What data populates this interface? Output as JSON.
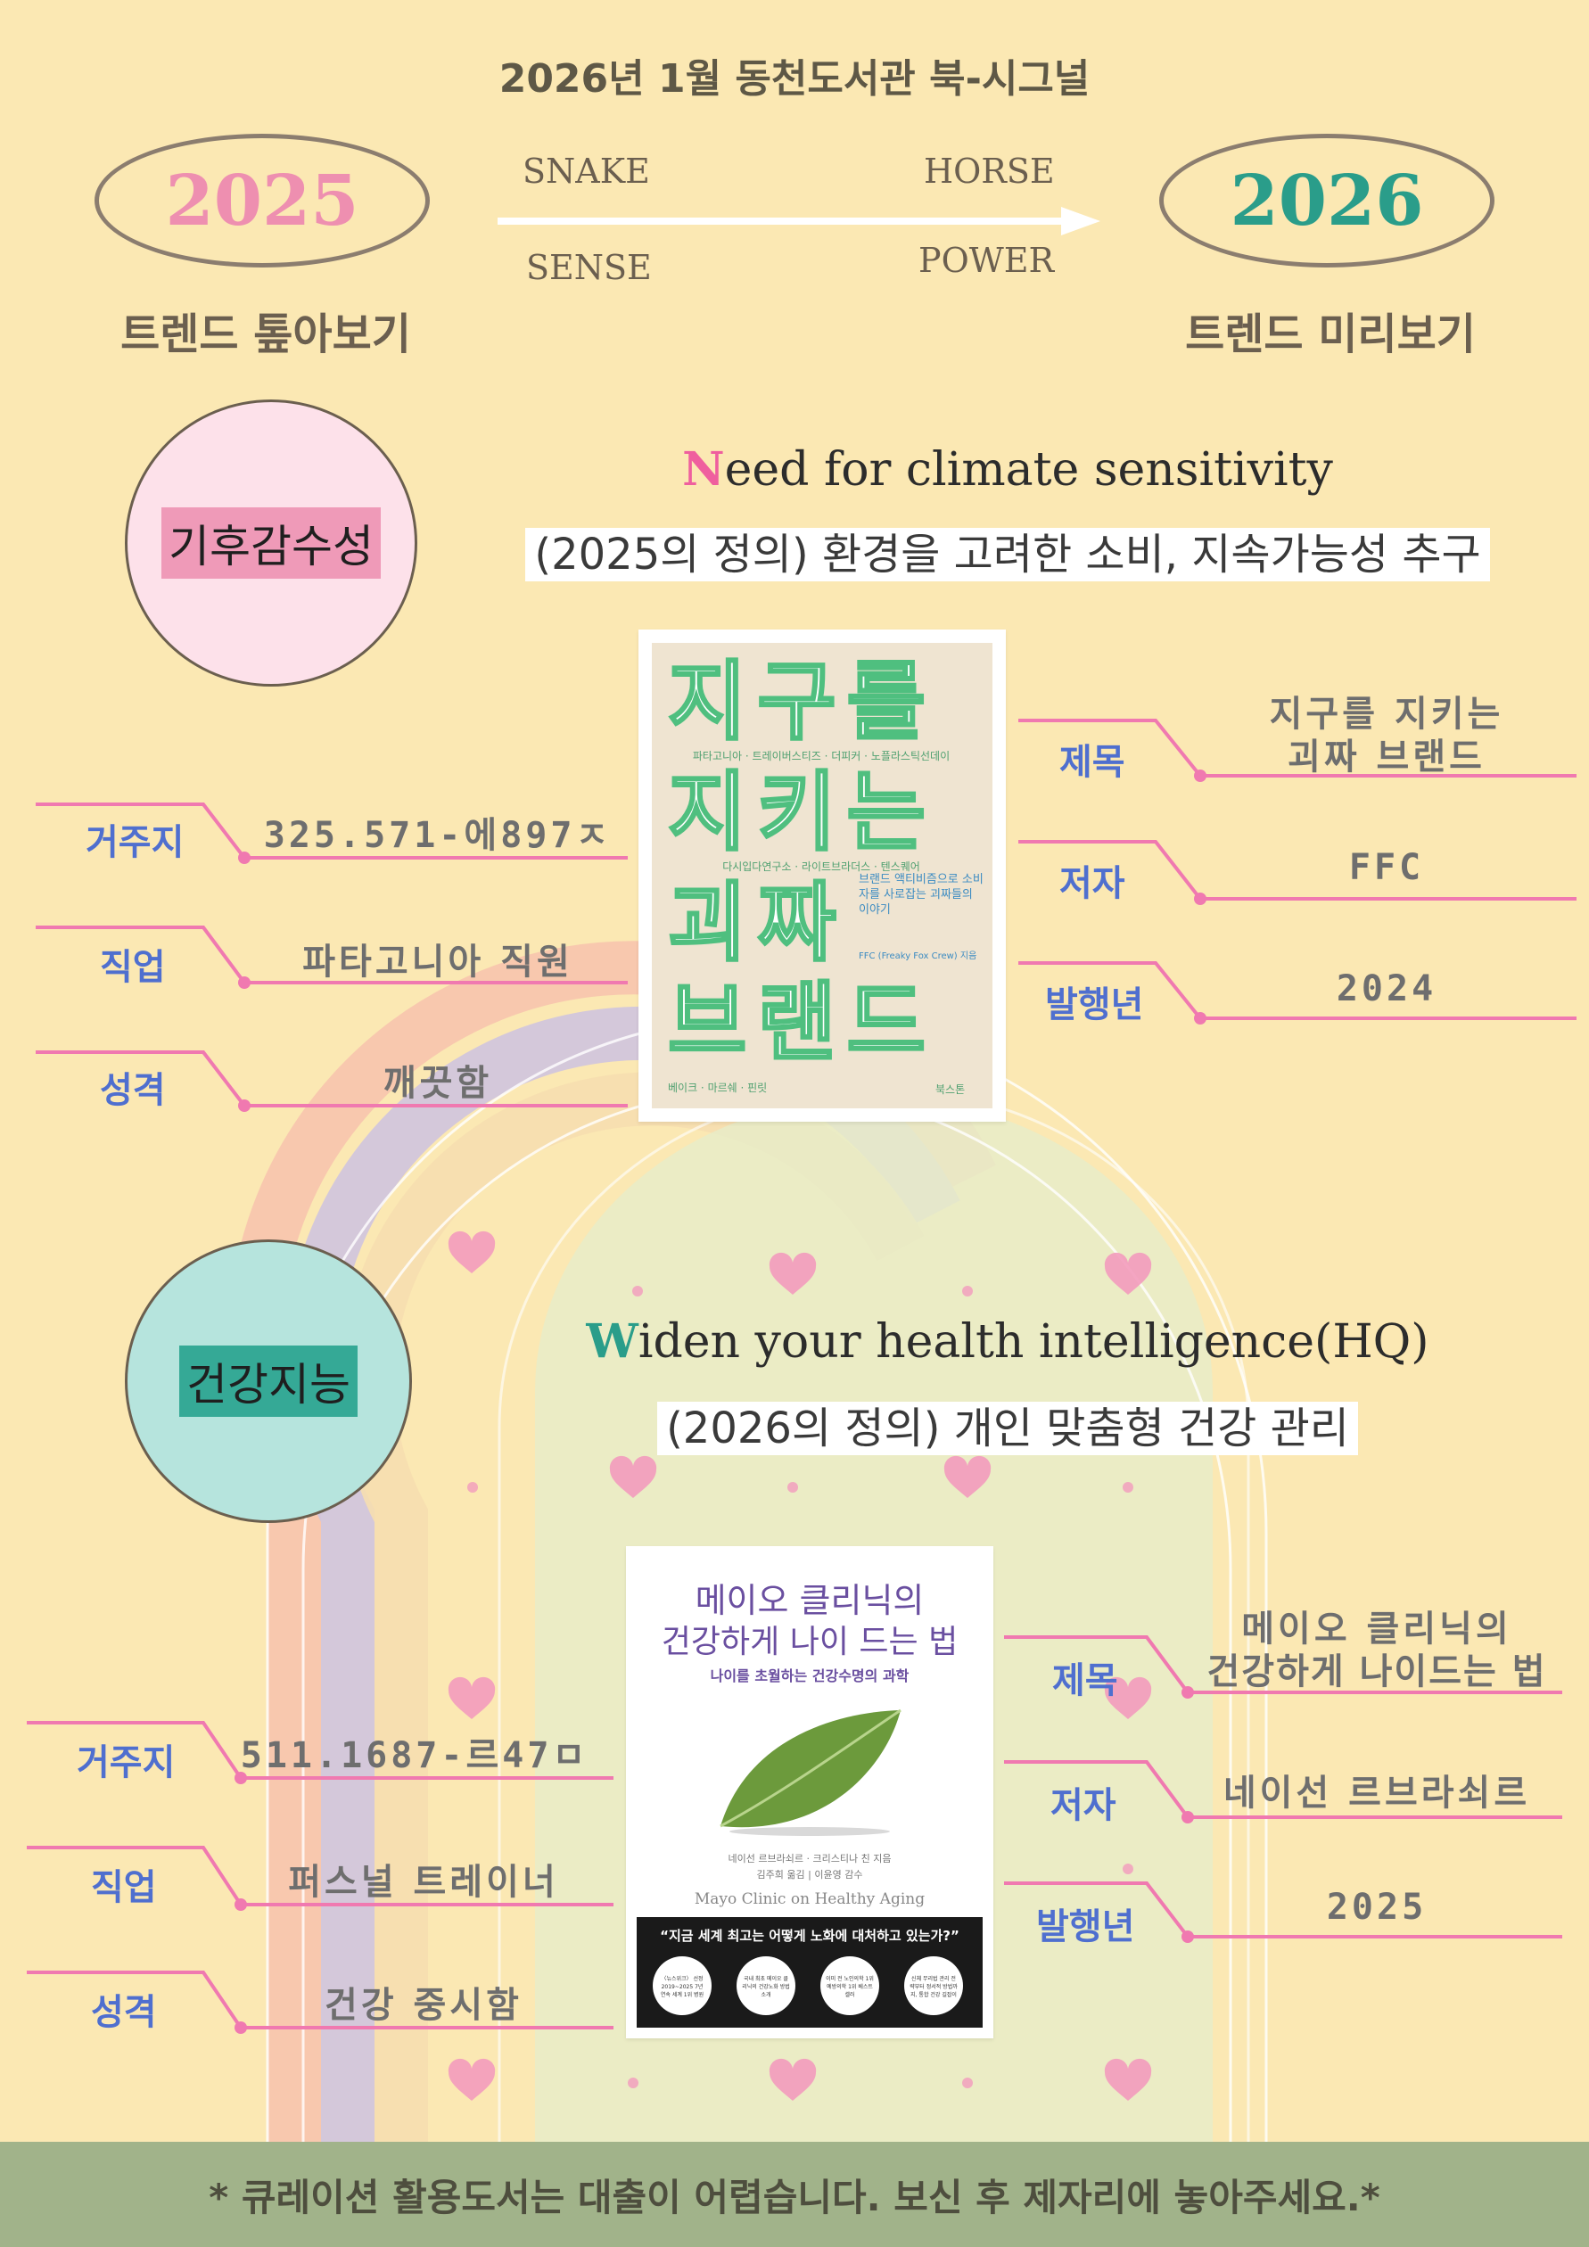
{
  "header": {
    "title": "2026년 1월 동천도서관 북-시그널",
    "year_from": "2025",
    "year_to": "2026",
    "left_subtitle": "트렌드 톺아보기",
    "right_subtitle": "트렌드 미리보기",
    "arrow_words": [
      "SNAKE",
      "SENSE",
      "HORSE",
      "POWER"
    ]
  },
  "colors": {
    "background": "#fbe8b3",
    "pink": "#ef7fb0",
    "teal": "#2a9d8a",
    "label_blue": "#4f6fcf",
    "footer_bg": "#a1b38a"
  },
  "section1": {
    "keyword": "기후감수성",
    "heading_initial": "N",
    "heading_rest": "eed for climate sensitivity",
    "definition": "(2025의 정의) 환경을 고려한 소비, 지속가능성 추구",
    "book_cover": {
      "title_lines": [
        "지구를",
        "지키는",
        "괴짜",
        "브랜드"
      ],
      "brands_1": "파타고니아 · 트레이버스티즈 · 더피커 · 노플라스틱선데이",
      "brands_2": "다시입다연구소 · 라이트브라더스 · 텐스퀘어",
      "tagline": "브랜드 액티비즘으로 소비자를 사로잡는 괴짜들의 이야기",
      "author_line": "FFC (Freaky Fox Crew) 지음",
      "brands_3": "베이크 · 마르쉐 · 핀릿",
      "publisher": "북스톤"
    },
    "labels": {
      "location": "거주지",
      "job": "직업",
      "personality": "성격",
      "title": "제목",
      "author": "저자",
      "year": "발행년"
    },
    "values": {
      "location": "325.571-에897ㅈ",
      "job": "파타고니아 직원",
      "personality": "깨끗함",
      "title_line1": "지구를 지키는",
      "title_line2": "괴짜 브랜드",
      "author": "FFC",
      "year": "2024"
    }
  },
  "section2": {
    "keyword": "건강지능",
    "heading_initial": "W",
    "heading_rest": "iden your health intelligence(HQ)",
    "definition": "(2026의 정의) 개인 맞춤형 건강 관리",
    "book_cover": {
      "title_line1": "메이오 클리닉의",
      "title_line2": "건강하게 나이 드는 법",
      "subtitle": "나이를 초월하는 건강수명의 과학",
      "authors": "네이선 르브라쇠르 · 크리스티나 친 지음",
      "translators": "김주희 옮김 | 이윤영 감수",
      "english_title": "Mayo Clinic on Healthy Aging",
      "quote": "“지금 세계 최고는 어떻게 노화에 대처하고 있는가?”",
      "badges": [
        "〈뉴스위크〉 선정 2019~2025 7년 연속 세계 1위 병원",
        "국내 최초 메이오 클리닉의 건강노화 방법 소개",
        "이미 전 노인의학 1위 예방의학 1위 베스트셀러",
        "신체 무리법 관리 전략부터 정서적 방법까지, 통합 건강 길잡이"
      ]
    },
    "labels": {
      "location": "거주지",
      "job": "직업",
      "personality": "성격",
      "title": "제목",
      "author": "저자",
      "year": "발행년"
    },
    "values": {
      "location": "511.1687-르47ㅁ",
      "job": "퍼스널 트레이너",
      "personality": "건강 중시함",
      "title_line1": "메이오 클리닉의",
      "title_line2": "건강하게 나이드는 법",
      "author": "네이선 르브라쇠르",
      "year": "2025"
    }
  },
  "footer": {
    "notice": "* 큐레이션 활용도서는 대출이 어렵습니다. 보신 후 제자리에 놓아주세요.*"
  }
}
